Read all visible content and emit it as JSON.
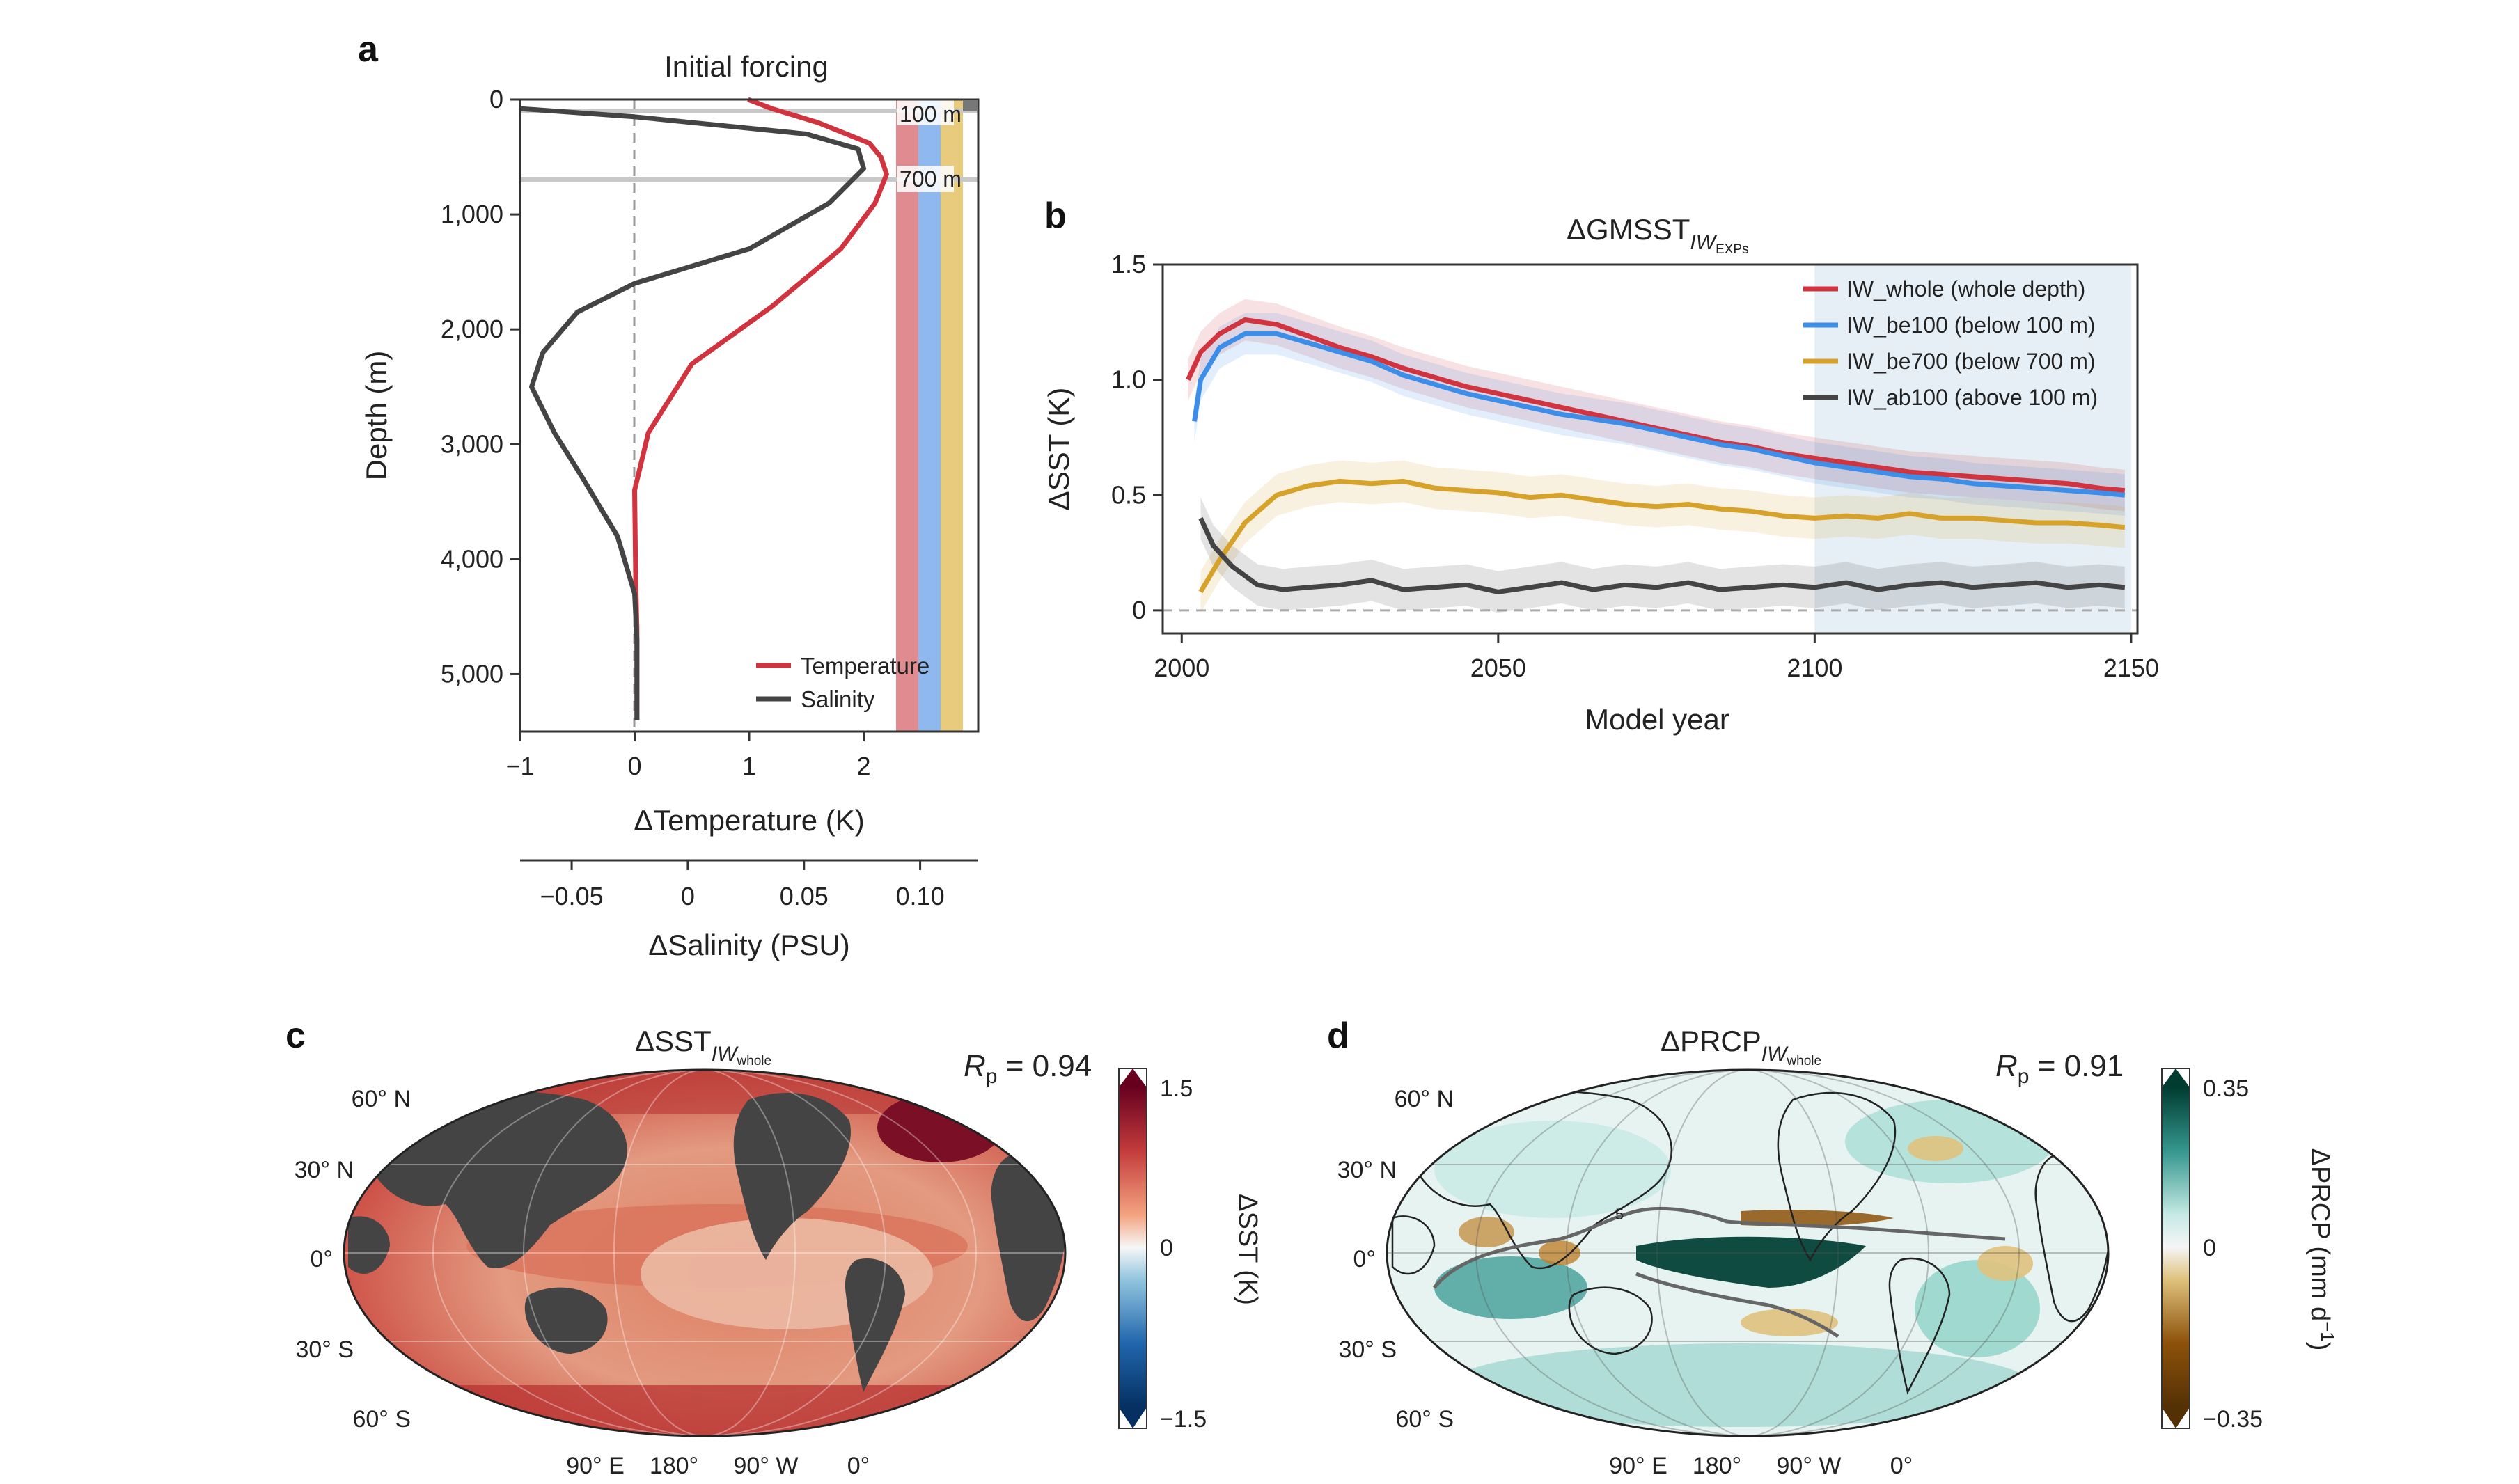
{
  "panel_labels": {
    "a": "a",
    "b": "b",
    "c": "c",
    "d": "d"
  },
  "chart_data": [
    {
      "id": "a",
      "type": "line",
      "title": "Initial forcing",
      "xlabel": "ΔTemperature (K)",
      "xlabel2": "ΔSalinity (PSU)",
      "ylabel": "Depth (m)",
      "xlim": [
        -1,
        3
      ],
      "ylim": [
        5500,
        0
      ],
      "x_ticks": [
        "−1",
        "0",
        "1",
        "2"
      ],
      "x2_ticks": [
        "−0.05",
        "0",
        "0.05",
        "0.10"
      ],
      "y_ticks": [
        "0",
        "1,000",
        "2,000",
        "3,000",
        "4,000",
        "5,000"
      ],
      "depth_lines": [
        "100 m",
        "700 m"
      ],
      "legend_placement": "bottom-right",
      "series": [
        {
          "name": "Temperature",
          "color": "#d1343f",
          "points": [
            [
              0.99,
              0
            ],
            [
              1.2,
              80
            ],
            [
              1.6,
              200
            ],
            [
              2.05,
              380
            ],
            [
              2.15,
              500
            ],
            [
              2.2,
              650
            ],
            [
              2.1,
              900
            ],
            [
              1.8,
              1300
            ],
            [
              1.2,
              1800
            ],
            [
              0.5,
              2300
            ],
            [
              0.12,
              2900
            ],
            [
              0.0,
              3400
            ],
            [
              0.01,
              4200
            ],
            [
              0.02,
              4600
            ],
            [
              0.02,
              5000
            ],
            [
              0.02,
              5400
            ]
          ]
        },
        {
          "name": "Salinity",
          "color": "#444444",
          "points": [
            [
              -0.99,
              80
            ],
            [
              0.0,
              150
            ],
            [
              1.5,
              300
            ],
            [
              1.95,
              430
            ],
            [
              2.0,
              600
            ],
            [
              1.7,
              900
            ],
            [
              1.0,
              1300
            ],
            [
              0.0,
              1600
            ],
            [
              -0.5,
              1850
            ],
            [
              -0.8,
              2200
            ],
            [
              -0.9,
              2500
            ],
            [
              -0.7,
              2900
            ],
            [
              -0.45,
              3300
            ],
            [
              -0.15,
              3800
            ],
            [
              0.0,
              4300
            ],
            [
              0.02,
              4700
            ],
            [
              0.02,
              5000
            ],
            [
              0.02,
              5400
            ]
          ]
        }
      ],
      "forcing_bars": [
        {
          "color": "#e08b90"
        },
        {
          "color": "#8fb8ee"
        },
        {
          "color": "#e9cb7e"
        }
      ]
    },
    {
      "id": "b",
      "type": "line",
      "title": "ΔGMSST",
      "title_sub": "IW",
      "title_subsub": "EXPs",
      "xlabel": "Model year",
      "ylabel": "ΔSST (K)",
      "xlim": [
        1997,
        2151
      ],
      "ylim": [
        -0.1,
        1.5
      ],
      "x_ticks": [
        "2000",
        "2050",
        "2100",
        "2150"
      ],
      "y_ticks": [
        "0",
        "0.5",
        "1.0",
        "1.5"
      ],
      "shaded_period": [
        2100,
        2150
      ],
      "legend_placement": "top-right",
      "series": [
        {
          "name": "IW_whole (whole depth)",
          "color": "#d1343f",
          "x": [
            2001,
            2003,
            2006,
            2010,
            2015,
            2020,
            2025,
            2030,
            2035,
            2040,
            2045,
            2050,
            2055,
            2060,
            2065,
            2070,
            2075,
            2080,
            2085,
            2090,
            2095,
            2100,
            2105,
            2110,
            2115,
            2120,
            2125,
            2130,
            2135,
            2140,
            2145,
            2149
          ],
          "y": [
            1.0,
            1.12,
            1.2,
            1.26,
            1.24,
            1.19,
            1.14,
            1.1,
            1.05,
            1.01,
            0.97,
            0.94,
            0.91,
            0.88,
            0.85,
            0.82,
            0.79,
            0.76,
            0.73,
            0.71,
            0.68,
            0.66,
            0.64,
            0.62,
            0.6,
            0.59,
            0.58,
            0.57,
            0.56,
            0.55,
            0.53,
            0.52
          ]
        },
        {
          "name": "IW_be100 (below 100 m)",
          "color": "#3d8ee8",
          "x": [
            2002,
            2003,
            2006,
            2010,
            2015,
            2020,
            2025,
            2030,
            2035,
            2040,
            2045,
            2050,
            2055,
            2060,
            2065,
            2070,
            2075,
            2080,
            2085,
            2090,
            2095,
            2100,
            2105,
            2110,
            2115,
            2120,
            2125,
            2130,
            2135,
            2140,
            2145,
            2149
          ],
          "y": [
            0.82,
            1.0,
            1.14,
            1.2,
            1.2,
            1.16,
            1.12,
            1.08,
            1.02,
            0.98,
            0.94,
            0.91,
            0.88,
            0.85,
            0.83,
            0.81,
            0.78,
            0.75,
            0.72,
            0.7,
            0.67,
            0.64,
            0.62,
            0.6,
            0.58,
            0.57,
            0.55,
            0.54,
            0.53,
            0.52,
            0.51,
            0.5
          ]
        },
        {
          "name": "IW_be700 (below 700 m)",
          "color": "#d6a22a",
          "x": [
            2003,
            2006,
            2010,
            2015,
            2020,
            2025,
            2030,
            2035,
            2040,
            2045,
            2050,
            2055,
            2060,
            2065,
            2070,
            2075,
            2080,
            2085,
            2090,
            2095,
            2100,
            2105,
            2110,
            2115,
            2120,
            2125,
            2130,
            2135,
            2140,
            2145,
            2149
          ],
          "y": [
            0.08,
            0.22,
            0.38,
            0.5,
            0.54,
            0.56,
            0.55,
            0.56,
            0.53,
            0.52,
            0.51,
            0.49,
            0.5,
            0.48,
            0.46,
            0.45,
            0.46,
            0.44,
            0.43,
            0.41,
            0.4,
            0.41,
            0.4,
            0.42,
            0.4,
            0.4,
            0.39,
            0.38,
            0.38,
            0.37,
            0.36
          ]
        },
        {
          "name": "IW_ab100 (above 100 m)",
          "color": "#444444",
          "x": [
            2003,
            2005,
            2008,
            2012,
            2016,
            2020,
            2025,
            2030,
            2035,
            2040,
            2045,
            2050,
            2055,
            2060,
            2065,
            2070,
            2075,
            2080,
            2085,
            2090,
            2095,
            2100,
            2105,
            2110,
            2115,
            2120,
            2125,
            2130,
            2135,
            2140,
            2145,
            2149
          ],
          "y": [
            0.4,
            0.28,
            0.19,
            0.11,
            0.09,
            0.1,
            0.11,
            0.13,
            0.09,
            0.1,
            0.11,
            0.08,
            0.1,
            0.12,
            0.09,
            0.11,
            0.1,
            0.12,
            0.09,
            0.1,
            0.11,
            0.1,
            0.12,
            0.09,
            0.11,
            0.12,
            0.1,
            0.11,
            0.12,
            0.1,
            0.11,
            0.1
          ]
        }
      ]
    },
    {
      "id": "c",
      "type": "heatmap",
      "title": "ΔSST",
      "title_sub": "IW",
      "title_subsub": "whole",
      "stat_label": "R",
      "stat_sub": "p",
      "stat_value": " = 0.94",
      "lat_labels": [
        "60° N",
        "30° N",
        "0°",
        "30° S",
        "60° S"
      ],
      "lon_labels": [
        "90° E",
        "180°",
        "90° W",
        "0°"
      ],
      "colorbar": {
        "label": "ΔSST (K)",
        "ticks": [
          "1.5",
          "0",
          "−1.5"
        ],
        "colors": [
          "#67001f",
          "#c43c3c",
          "#f3a481",
          "#f7f7f7",
          "#92c5de",
          "#2166ac",
          "#053061"
        ]
      }
    },
    {
      "id": "d",
      "type": "heatmap",
      "title": "ΔPRCP",
      "title_sub": "IW",
      "title_subsub": "whole",
      "stat_label": "R",
      "stat_sub": "p",
      "stat_value": " = 0.91",
      "contour_label": "5",
      "lat_labels": [
        "60° N",
        "30° N",
        "0°",
        "30° S",
        "60° S"
      ],
      "lon_labels": [
        "90° E",
        "180°",
        "90° W",
        "0°"
      ],
      "colorbar": {
        "label": "ΔPRCP (mm d",
        "label_sup": "−1",
        "label_end": ")",
        "ticks": [
          "0.35",
          "0",
          "−0.35"
        ],
        "colors": [
          "#003c30",
          "#35978f",
          "#c7eae5",
          "#f5f5f5",
          "#dfc27d",
          "#8c510a",
          "#543005"
        ]
      }
    }
  ]
}
